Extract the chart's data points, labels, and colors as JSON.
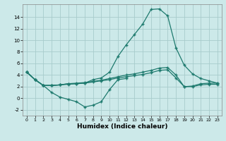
{
  "xlabel": "Humidex (Indice chaleur)",
  "bg_color": "#cce9e9",
  "grid_color": "#a8cccc",
  "line_color": "#1e7a6e",
  "x_all": [
    0,
    1,
    2,
    3,
    4,
    5,
    6,
    7,
    8,
    9,
    10,
    11,
    12,
    13,
    14,
    15,
    16,
    17,
    18,
    19,
    20,
    21,
    22,
    23
  ],
  "line_main": [
    4.5,
    3.2,
    2.2,
    2.2,
    2.3,
    2.5,
    2.5,
    2.6,
    3.2,
    3.5,
    4.5,
    7.2,
    9.2,
    11.0,
    12.8,
    15.3,
    15.4,
    14.2,
    8.7,
    5.7,
    4.2,
    3.4,
    3.0,
    2.6
  ],
  "line_dip": [
    4.5,
    3.2,
    2.2,
    1.0,
    0.2,
    -0.2,
    -0.6,
    -1.5,
    -1.2,
    -0.6,
    1.5,
    3.2,
    3.4,
    null,
    null,
    null,
    null,
    null,
    null,
    null,
    null,
    null,
    null,
    null
  ],
  "line_upper_flat": [
    4.5,
    3.2,
    2.2,
    2.2,
    2.3,
    2.5,
    2.6,
    2.7,
    2.9,
    3.1,
    3.4,
    3.7,
    4.0,
    4.2,
    4.5,
    4.8,
    5.2,
    5.3,
    4.0,
    2.0,
    2.1,
    2.5,
    2.6,
    2.6
  ],
  "line_lower_flat": [
    4.5,
    3.2,
    2.2,
    2.2,
    2.3,
    2.4,
    2.5,
    2.6,
    2.8,
    3.0,
    3.2,
    3.5,
    3.7,
    3.9,
    4.1,
    4.4,
    4.8,
    4.9,
    3.5,
    2.0,
    2.0,
    2.3,
    2.4,
    2.4
  ],
  "ylim": [
    -3.0,
    16.2
  ],
  "xlim": [
    -0.5,
    23.5
  ],
  "yticks": [
    -2,
    0,
    2,
    4,
    6,
    8,
    10,
    12,
    14
  ],
  "xticks": [
    0,
    1,
    2,
    3,
    4,
    5,
    6,
    7,
    8,
    9,
    10,
    11,
    12,
    13,
    14,
    15,
    16,
    17,
    18,
    19,
    20,
    21,
    22,
    23
  ],
  "figw": 3.2,
  "figh": 2.0,
  "dpi": 100
}
